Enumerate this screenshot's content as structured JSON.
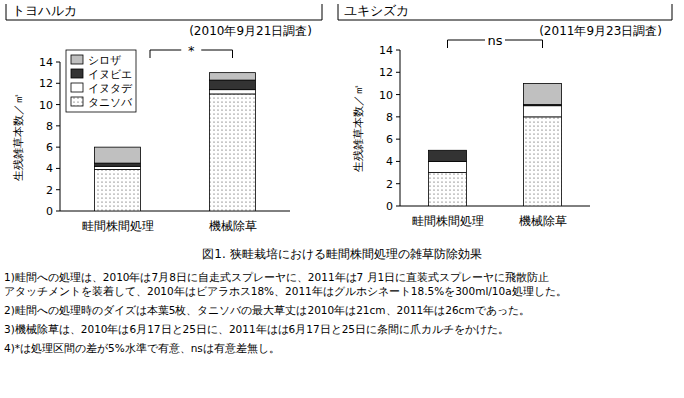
{
  "chart_data": [
    {
      "type": "bar",
      "stacked": true,
      "title": "トヨハルカ",
      "subtitle": "(2010年9月21日調査)",
      "y_label": "生残雑草本数／㎡",
      "annotation": "*",
      "legend": "top-left",
      "categories": [
        "畦間株間処理",
        "機械除草"
      ],
      "series": [
        {
          "name": "タニソバ",
          "color": "#ffffff",
          "marker": "dots",
          "values": [
            3.9,
            11.0
          ]
        },
        {
          "name": "イヌタデ",
          "color": "#ffffff",
          "values": [
            0.3,
            0.4
          ]
        },
        {
          "name": "イヌビエ",
          "color": "#333333",
          "values": [
            0.3,
            0.9
          ]
        },
        {
          "name": "シロザ",
          "color": "#c0c0c0",
          "values": [
            1.5,
            0.7
          ]
        }
      ],
      "ylim": [
        0,
        14
      ],
      "yticks": [
        0,
        2,
        4,
        6,
        8,
        10,
        12,
        14
      ]
    },
    {
      "type": "bar",
      "stacked": true,
      "title": "ユキシズカ",
      "subtitle": "(2011年9月23日調査)",
      "y_label": "生残雑草本数／㎡",
      "annotation": "ns",
      "categories": [
        "畦間株間処理",
        "機械除草"
      ],
      "series": [
        {
          "color": "#ffffff",
          "marker": "dots",
          "values": [
            3,
            8
          ]
        },
        {
          "color": "#ffffff",
          "values": [
            1,
            1
          ]
        },
        {
          "color": "#333333",
          "values": [
            1,
            0.1
          ]
        },
        {
          "color": "#c0c0c0",
          "values": [
            0,
            1.9
          ]
        }
      ],
      "ylim": [
        0,
        14
      ],
      "yticks": [
        0,
        2,
        4,
        6,
        8,
        10,
        12,
        14
      ]
    }
  ],
  "figure_caption": "図1. 狭畦栽培における畦間株間処理の雑草防除効果",
  "notes": [
    [
      "1)畦間への処理は、2010年は7月8日に自走式スプレーヤに、2011年は7 月1日に直装式スプレーヤに飛散防止",
      "アタッチメントを装着して、2010年はビアラホス18%、2011年はグルホシネート18.5%を300ml/10a処理した。"
    ],
    [
      "2)畦間への処理時のダイズは本葉5枚、タニソバの最大草丈は2010年は21cm、2011年は26cmであった。"
    ],
    [
      "3)機械除草は、2010年は6月17日と25日に、2011年はは6月17日と25日に条間に爪カルチをかけた。"
    ],
    [
      "4)*は処理区間の差が5%水準で有意、nsは有意差無し。"
    ]
  ]
}
